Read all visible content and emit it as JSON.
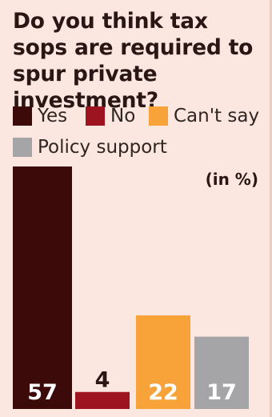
{
  "title": "Do you think tax sops are required to spur private investment?",
  "unit": "(in %)",
  "chart_data": {
    "type": "bar",
    "categories": [
      "Yes",
      "No",
      "Can't say",
      "Policy support"
    ],
    "values": [
      57,
      4,
      22,
      17
    ],
    "colors": [
      "#3d0a0a",
      "#9d1420",
      "#f7a33a",
      "#a5a5a7"
    ],
    "ylim": [
      0,
      57
    ],
    "legend_position": "top"
  }
}
